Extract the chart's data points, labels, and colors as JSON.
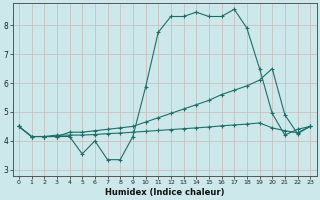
{
  "xlabel": "Humidex (Indice chaleur)",
  "bg_color": "#cce8ea",
  "line_color": "#1e6e68",
  "grid_color_major": "#b0cccc",
  "grid_color_minor": "#c8dede",
  "xlim": [
    -0.5,
    23.5
  ],
  "ylim": [
    2.8,
    8.75
  ],
  "xticks": [
    0,
    1,
    2,
    3,
    4,
    5,
    6,
    7,
    8,
    9,
    10,
    11,
    12,
    13,
    14,
    15,
    16,
    17,
    18,
    19,
    20,
    21,
    22,
    23
  ],
  "yticks": [
    3,
    4,
    5,
    6,
    7,
    8
  ],
  "line1_x": [
    0,
    1,
    2,
    3,
    4,
    5,
    6,
    7,
    8,
    9,
    10,
    11,
    12,
    13,
    14,
    15,
    16,
    17,
    18,
    19,
    20,
    21,
    22,
    23
  ],
  "line1_y": [
    4.5,
    4.15,
    4.15,
    4.15,
    4.15,
    3.55,
    4.0,
    3.35,
    3.35,
    4.15,
    5.85,
    7.75,
    8.3,
    8.3,
    8.45,
    8.3,
    8.3,
    8.55,
    7.9,
    6.5,
    4.95,
    4.2,
    4.4,
    4.5
  ],
  "line2_x": [
    0,
    1,
    2,
    3,
    4,
    5,
    6,
    7,
    8,
    9,
    10,
    11,
    12,
    13,
    14,
    15,
    16,
    17,
    18,
    19,
    20,
    21,
    22,
    23
  ],
  "line2_y": [
    4.5,
    4.15,
    4.15,
    4.15,
    4.3,
    4.3,
    4.35,
    4.4,
    4.45,
    4.5,
    4.65,
    4.8,
    4.95,
    5.1,
    5.25,
    5.4,
    5.6,
    5.75,
    5.9,
    6.1,
    6.5,
    4.9,
    4.25,
    4.5
  ],
  "line3_x": [
    0,
    1,
    2,
    3,
    4,
    5,
    6,
    7,
    8,
    9,
    10,
    11,
    12,
    13,
    14,
    15,
    16,
    17,
    18,
    19,
    20,
    21,
    22,
    23
  ],
  "line3_y": [
    4.5,
    4.15,
    4.15,
    4.2,
    4.2,
    4.2,
    4.22,
    4.25,
    4.27,
    4.3,
    4.33,
    4.36,
    4.39,
    4.42,
    4.45,
    4.48,
    4.52,
    4.55,
    4.58,
    4.62,
    4.45,
    4.35,
    4.28,
    4.5
  ]
}
